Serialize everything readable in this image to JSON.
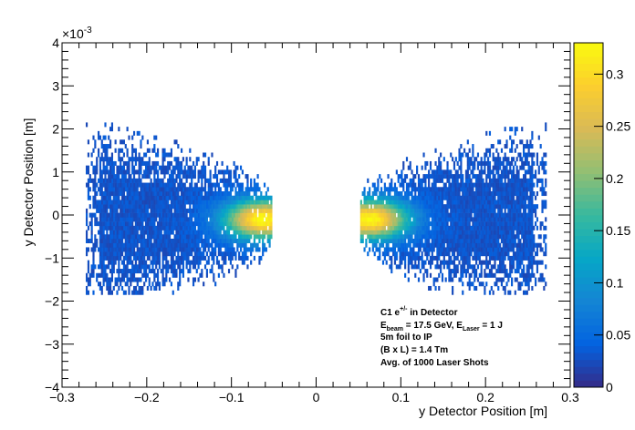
{
  "chart_data": {
    "type": "heatmap",
    "title": "",
    "xlabel": "y Detector Position [m]",
    "ylabel": "y Detector Position [m]",
    "xlim": [
      -0.3,
      0.3
    ],
    "ylim": [
      -4,
      4
    ],
    "y_exponent": "×10",
    "y_exponent_power": "-3",
    "x_ticks": [
      -0.3,
      -0.2,
      -0.1,
      0,
      0.1,
      0.2,
      0.3
    ],
    "x_tick_labels": [
      "−0.3",
      "−0.2",
      "−0.1",
      "0",
      "0.1",
      "0.2",
      "0.3"
    ],
    "y_ticks": [
      -4,
      -3,
      -2,
      -1,
      0,
      1,
      2,
      3,
      4
    ],
    "y_tick_labels": [
      "−4",
      "−3",
      "−2",
      "−1",
      "0",
      "1",
      "2",
      "3",
      "4"
    ],
    "colorbar": {
      "min": 0,
      "max": 0.33,
      "ticks": [
        0,
        0.05,
        0.1,
        0.15,
        0.2,
        0.25,
        0.3
      ],
      "tick_labels": [
        "0",
        "0.05",
        "0.1",
        "0.15",
        "0.2",
        "0.25",
        "0.3"
      ],
      "palette": [
        "#352a87",
        "#0363e1",
        "#1485d4",
        "#06a7c6",
        "#38b99e",
        "#92bf73",
        "#d9ba56",
        "#fcce2e",
        "#f9fb0e"
      ]
    },
    "clusters": [
      {
        "name": "left",
        "x_range": [
          -0.272,
          -0.052
        ],
        "y_range": [
          -1.85,
          2.1
        ],
        "peak_x": -0.065,
        "peak_y": -0.1,
        "peak_value": 0.3
      },
      {
        "name": "right",
        "x_range": [
          0.052,
          0.272
        ],
        "y_range": [
          -1.85,
          2.1
        ],
        "peak_x": 0.065,
        "peak_y": -0.1,
        "peak_value": 0.3
      }
    ],
    "annotations": {
      "line1_main": "C1 e",
      "line1_sup": "+/-",
      "line1_rest": " in Detector",
      "line2_e": "E",
      "line2_beam_sub": "beam",
      "line2_mid": " = 17.5 GeV, E",
      "line2_laser_sub": "Laser",
      "line2_end": " = 1 J",
      "line3": "5m foil to IP",
      "line4": "(B x L) = 1.4 Tm",
      "line5": "Avg. of 1000 Laser Shots"
    }
  }
}
